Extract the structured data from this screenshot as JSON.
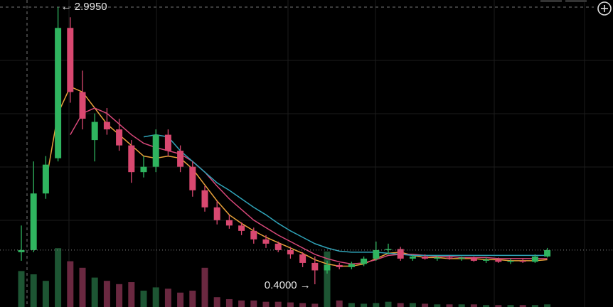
{
  "chart_data": {
    "type": "candlestick",
    "annotations": [
      "← 2.9950",
      "0.4000 →"
    ],
    "up_color": "#2fb45f",
    "down_color": "#d94870",
    "up_volume_color": "#1d5533",
    "down_volume_color": "#6a2840",
    "ylim": [
      0.187,
      3.0615
    ],
    "vlim": [
      0,
      100
    ],
    "open": [
      0.7,
      0.72,
      1.25,
      1.58,
      2.8,
      2.2,
      1.75,
      1.92,
      1.85,
      1.7,
      1.45,
      1.5,
      1.8,
      1.65,
      1.5,
      1.28,
      1.12,
      1.0,
      0.95,
      0.9,
      0.82,
      0.78,
      0.72,
      0.68,
      0.6,
      0.53,
      0.58,
      0.56,
      0.59,
      0.64,
      0.72,
      0.73,
      0.64,
      0.66,
      0.64,
      0.65,
      0.64,
      0.65,
      0.62,
      0.63,
      0.61,
      0.62,
      0.61,
      0.66
    ],
    "high": [
      0.95,
      1.55,
      1.6,
      2.995,
      2.9,
      2.4,
      2.0,
      2.05,
      1.95,
      1.75,
      1.6,
      1.85,
      1.85,
      1.7,
      1.55,
      1.32,
      1.18,
      1.05,
      0.98,
      0.93,
      0.86,
      0.8,
      0.75,
      0.7,
      0.66,
      0.62,
      0.6,
      0.61,
      0.66,
      0.8,
      0.78,
      0.75,
      0.68,
      0.68,
      0.67,
      0.67,
      0.66,
      0.66,
      0.65,
      0.65,
      0.64,
      0.64,
      0.68,
      0.74
    ],
    "low": [
      0.62,
      0.7,
      1.2,
      1.55,
      2.1,
      1.85,
      1.55,
      1.8,
      1.65,
      1.35,
      1.4,
      1.45,
      1.6,
      1.45,
      1.22,
      1.08,
      0.96,
      0.92,
      0.86,
      0.78,
      0.74,
      0.7,
      0.64,
      0.56,
      0.4,
      0.5,
      0.54,
      0.54,
      0.57,
      0.62,
      0.68,
      0.62,
      0.62,
      0.63,
      0.62,
      0.63,
      0.62,
      0.61,
      0.6,
      0.6,
      0.59,
      0.6,
      0.6,
      0.65
    ],
    "close": [
      0.72,
      1.25,
      1.52,
      2.8,
      2.2,
      1.95,
      1.92,
      1.85,
      1.7,
      1.45,
      1.5,
      1.8,
      1.65,
      1.5,
      1.28,
      1.12,
      1.0,
      0.95,
      0.9,
      0.82,
      0.78,
      0.72,
      0.68,
      0.6,
      0.53,
      0.58,
      0.56,
      0.59,
      0.64,
      0.72,
      0.73,
      0.64,
      0.66,
      0.64,
      0.65,
      0.64,
      0.65,
      0.62,
      0.63,
      0.61,
      0.62,
      0.61,
      0.66,
      0.72
    ],
    "volume": [
      55,
      50,
      40,
      90,
      70,
      60,
      45,
      40,
      35,
      38,
      25,
      30,
      28,
      22,
      25,
      60,
      15,
      12,
      10,
      10,
      8,
      8,
      7,
      6,
      5,
      85,
      10,
      6,
      5,
      6,
      8,
      6,
      6,
      5,
      4,
      4,
      4,
      4,
      3,
      3,
      3,
      3,
      3,
      4
    ],
    "series": [
      {
        "color": "#e8a23a",
        "values": [
          null,
          null,
          1.35,
          2.0,
          2.25,
          2.2,
          2.05,
          1.9,
          1.8,
          1.7,
          1.6,
          1.58,
          1.6,
          1.58,
          1.48,
          1.33,
          1.18,
          1.05,
          0.97,
          0.9,
          0.84,
          0.79,
          0.74,
          0.69,
          0.63,
          0.59,
          0.57,
          0.57,
          0.59,
          0.64,
          0.69,
          0.7,
          0.67,
          0.65,
          0.65,
          0.64,
          0.64,
          0.64,
          0.63,
          0.63,
          0.62,
          0.62,
          0.62,
          0.63
        ]
      },
      {
        "color": "#d9487a",
        "values": [
          null,
          null,
          null,
          null,
          1.8,
          2.0,
          2.05,
          2.0,
          1.9,
          1.8,
          1.72,
          1.68,
          1.65,
          1.62,
          1.55,
          1.45,
          1.32,
          1.2,
          1.1,
          1.0,
          0.93,
          0.86,
          0.8,
          0.74,
          0.68,
          0.64,
          0.61,
          0.59,
          0.6,
          0.63,
          0.67,
          0.68,
          0.68,
          0.67,
          0.66,
          0.66,
          0.65,
          0.65,
          0.65,
          0.64,
          0.64,
          0.64,
          0.64,
          0.64
        ]
      },
      {
        "color": "#2fa3b8",
        "values": [
          null,
          null,
          null,
          null,
          null,
          null,
          null,
          null,
          null,
          null,
          1.78,
          1.8,
          1.78,
          1.65,
          1.55,
          1.45,
          1.35,
          1.28,
          1.2,
          1.12,
          1.05,
          0.97,
          0.9,
          0.84,
          0.78,
          0.74,
          0.71,
          0.7,
          0.7,
          0.7,
          0.69,
          0.68,
          0.67,
          0.67,
          0.67,
          0.67,
          0.67,
          0.67,
          0.67,
          0.67,
          0.67,
          0.67,
          0.67,
          0.67
        ]
      }
    ]
  }
}
